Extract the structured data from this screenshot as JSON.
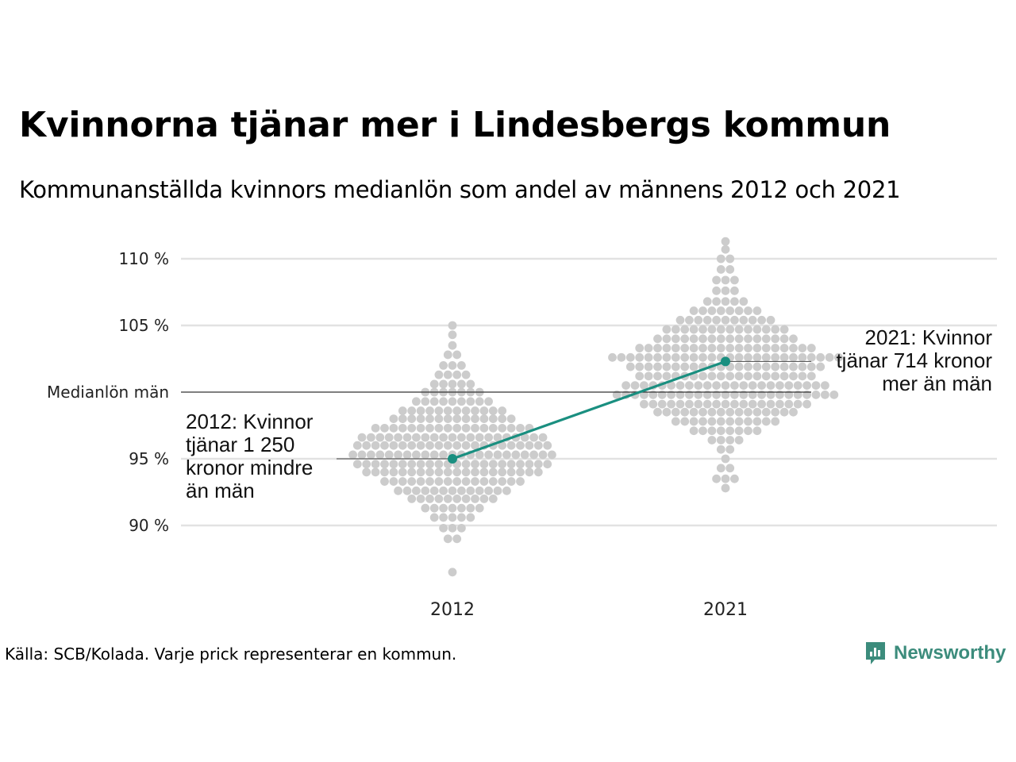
{
  "title": "Kvinnorna tjänar mer i Lindesbergs kommun",
  "subtitle": "Kommunanställda kvinnors medianlön som andel av männens 2012 och 2021",
  "footer": "Källa: SCB/Kolada. Varje prick representerar en kommun.",
  "brand": "Newsworthy",
  "colors": {
    "highlight": "#1a8f80",
    "dots": "#cccccc",
    "grid": "#e2e2e2",
    "reference_line": "#333333",
    "brand": "#3c8c7c"
  },
  "chart_data": {
    "type": "scatter",
    "subtype": "beeswarm",
    "categories": [
      "2012",
      "2021"
    ],
    "y_ticks": [
      {
        "value": 90,
        "label": "90 %"
      },
      {
        "value": 95,
        "label": "95 %"
      },
      {
        "value": 100,
        "label": "Medianlön män"
      },
      {
        "value": 105,
        "label": "105 %"
      },
      {
        "value": 110,
        "label": "110 %"
      }
    ],
    "ylim": [
      86,
      112
    ],
    "grid": true,
    "reference_value": 100,
    "highlight_series": [
      {
        "x": "2012",
        "y": 95.0
      },
      {
        "x": "2021",
        "y": 102.3
      }
    ],
    "annotations": [
      {
        "x": "2012",
        "y": 95.0,
        "lines": [
          "2012: Kvinnor",
          "tjänar 1 250",
          "kronor mindre",
          "än män"
        ],
        "side": "left"
      },
      {
        "x": "2021",
        "y": 102.3,
        "lines": [
          "2021: Kvinnor",
          "tjänar 714 kronor",
          "mer än män"
        ],
        "side": "right"
      }
    ],
    "distribution": [
      {
        "category": "2012",
        "min": 86.5,
        "max": 105.2,
        "bins": [
          {
            "y": 86.5,
            "count": 1
          },
          {
            "y": 89.0,
            "count": 2
          },
          {
            "y": 89.8,
            "count": 3
          },
          {
            "y": 90.6,
            "count": 5
          },
          {
            "y": 91.3,
            "count": 7
          },
          {
            "y": 92.0,
            "count": 10
          },
          {
            "y": 92.6,
            "count": 13
          },
          {
            "y": 93.3,
            "count": 16
          },
          {
            "y": 94.0,
            "count": 20
          },
          {
            "y": 94.6,
            "count": 22
          },
          {
            "y": 95.3,
            "count": 23
          },
          {
            "y": 96.0,
            "count": 22
          },
          {
            "y": 96.6,
            "count": 21
          },
          {
            "y": 97.3,
            "count": 18
          },
          {
            "y": 98.0,
            "count": 14
          },
          {
            "y": 98.6,
            "count": 12
          },
          {
            "y": 99.3,
            "count": 9
          },
          {
            "y": 100.0,
            "count": 7
          },
          {
            "y": 100.6,
            "count": 5
          },
          {
            "y": 101.3,
            "count": 4
          },
          {
            "y": 102.0,
            "count": 3
          },
          {
            "y": 102.8,
            "count": 2
          },
          {
            "y": 103.5,
            "count": 1
          },
          {
            "y": 104.3,
            "count": 1
          },
          {
            "y": 105.0,
            "count": 1
          }
        ]
      },
      {
        "category": "2021",
        "min": 92.6,
        "max": 111.3,
        "bins": [
          {
            "y": 92.8,
            "count": 1
          },
          {
            "y": 93.5,
            "count": 3
          },
          {
            "y": 94.3,
            "count": 2
          },
          {
            "y": 95.0,
            "count": 1
          },
          {
            "y": 95.7,
            "count": 2
          },
          {
            "y": 96.4,
            "count": 4
          },
          {
            "y": 97.1,
            "count": 8
          },
          {
            "y": 97.8,
            "count": 12
          },
          {
            "y": 98.5,
            "count": 16
          },
          {
            "y": 99.1,
            "count": 19
          },
          {
            "y": 99.8,
            "count": 25
          },
          {
            "y": 100.5,
            "count": 23
          },
          {
            "y": 101.2,
            "count": 20
          },
          {
            "y": 101.9,
            "count": 22
          },
          {
            "y": 102.6,
            "count": 26
          },
          {
            "y": 103.3,
            "count": 20
          },
          {
            "y": 104.0,
            "count": 16
          },
          {
            "y": 104.7,
            "count": 14
          },
          {
            "y": 105.4,
            "count": 11
          },
          {
            "y": 106.1,
            "count": 8
          },
          {
            "y": 106.8,
            "count": 5
          },
          {
            "y": 107.6,
            "count": 3
          },
          {
            "y": 108.4,
            "count": 3
          },
          {
            "y": 109.2,
            "count": 2
          },
          {
            "y": 110.0,
            "count": 2
          },
          {
            "y": 110.7,
            "count": 1
          },
          {
            "y": 111.3,
            "count": 1
          }
        ]
      }
    ]
  }
}
